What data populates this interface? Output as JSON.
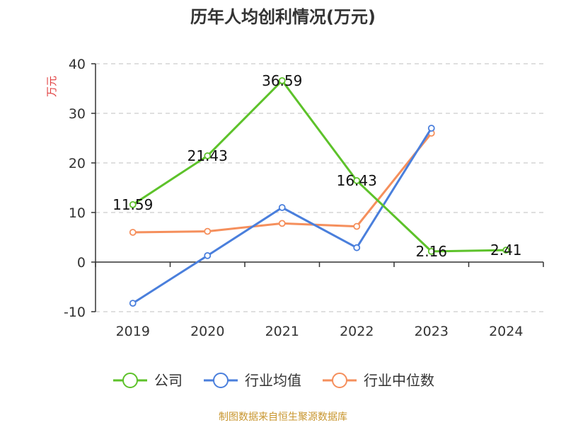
{
  "chart_data": {
    "type": "line",
    "title": "历年人均创利情况(万元)",
    "ylabel": "万元",
    "xlabel": "",
    "categories": [
      "2019",
      "2020",
      "2021",
      "2022",
      "2023",
      "2024"
    ],
    "ylim": [
      -10,
      40
    ],
    "yticks": [
      -10,
      0,
      10,
      20,
      30,
      40
    ],
    "grid": true,
    "legend_position": "bottom",
    "series": [
      {
        "name": "公司",
        "color": "#5dc22a",
        "values": [
          11.59,
          21.43,
          36.59,
          16.43,
          2.16,
          2.41
        ],
        "labels": [
          "11.59",
          "21.43",
          "36.59",
          "16.43",
          "2.16",
          "2.41"
        ]
      },
      {
        "name": "行业均值",
        "color": "#4a7fdc",
        "values": [
          -8.3,
          1.3,
          11.0,
          2.9,
          27.0,
          null
        ]
      },
      {
        "name": "行业中位数",
        "color": "#f58f5c",
        "values": [
          6.0,
          6.2,
          7.8,
          7.2,
          26.0,
          null
        ]
      }
    ]
  },
  "footer": {
    "source": "制图数据来自恒生聚源数据库"
  },
  "colors": {
    "unit_label": "#e03c3c",
    "grid": "#cccccc",
    "axis": "#333333",
    "source": "#c8962f"
  }
}
